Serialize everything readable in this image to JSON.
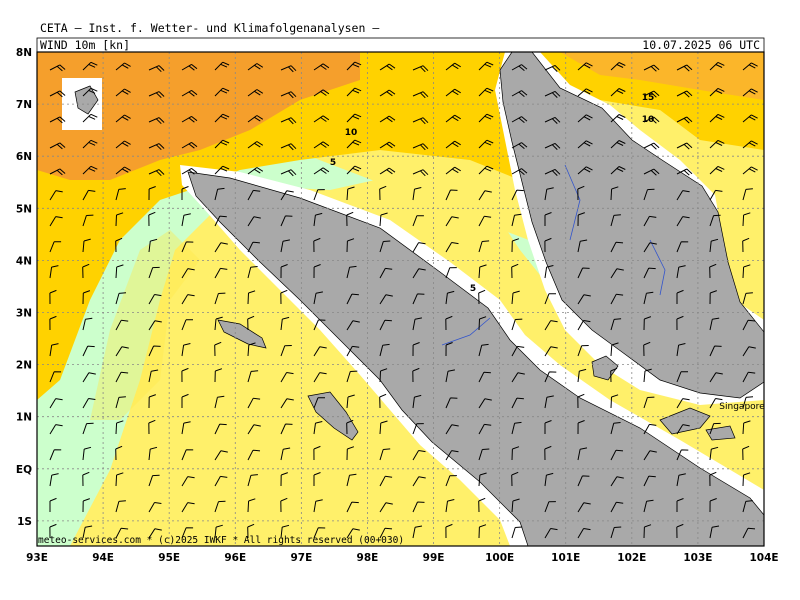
{
  "header": {
    "title": "CETA — Inst. f. Wetter- und Klimafolgenanalysen —",
    "field": "WIND 10m [kn]",
    "valid_time": "10.07.2025 06 UTC"
  },
  "axes": {
    "lon_labels": [
      "93E",
      "94E",
      "95E",
      "96E",
      "97E",
      "98E",
      "99E",
      "100E",
      "101E",
      "102E",
      "103E",
      "104E"
    ],
    "lat_labels": [
      "8N",
      "7N",
      "6N",
      "5N",
      "4N",
      "3N",
      "2N",
      "1N",
      "EQ",
      "1S"
    ]
  },
  "map": {
    "contour_labels": [
      "15",
      "10",
      "10",
      "5",
      "5"
    ],
    "place_labels": [
      "Singapore"
    ]
  },
  "footer": {
    "copyright": "meteo-services.com * (c)2025 IWKF * All rights reserved (00+030)"
  }
}
